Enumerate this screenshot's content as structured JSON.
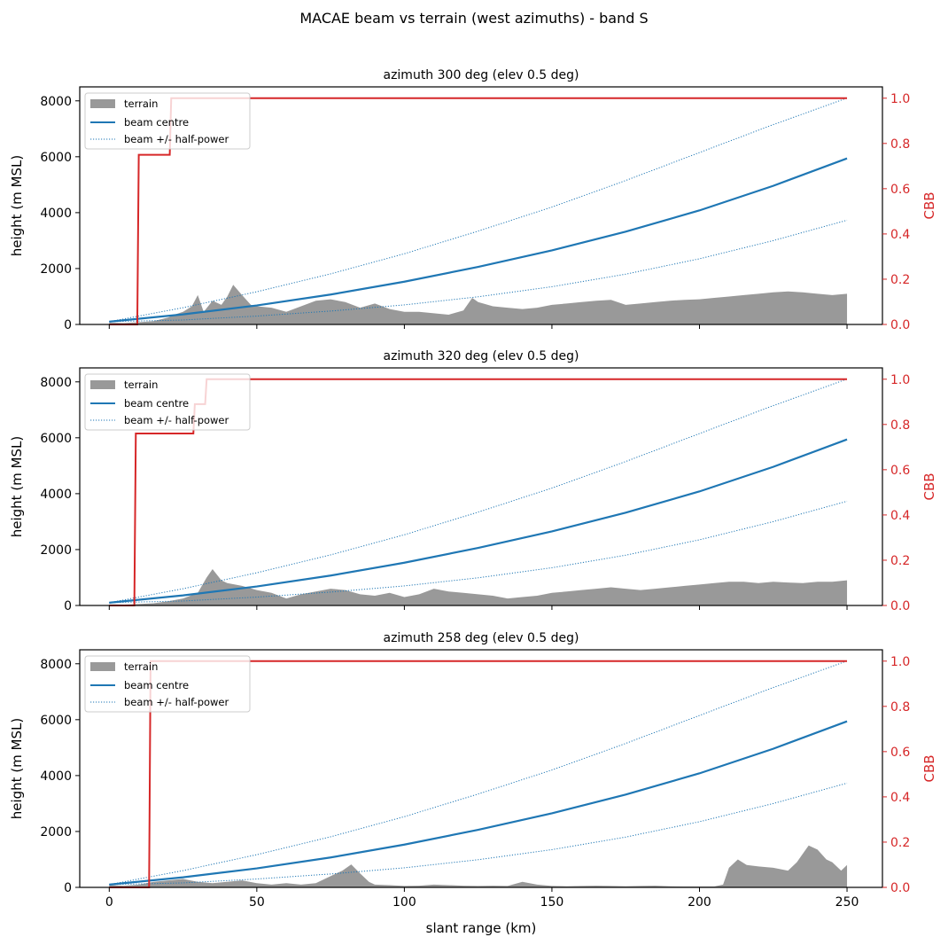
{
  "figure": {
    "title": "MACAE beam vs terrain (west azimuths)  -  band S"
  },
  "axes": {
    "xlabel": "slant range (km)",
    "ylabel_left": "height (m MSL)",
    "ylabel_right": "CBB",
    "xlim": [
      -10,
      262
    ],
    "ylim_left": [
      0,
      8500
    ],
    "ylim_right": [
      0,
      1.05
    ],
    "x_ticks": [
      0,
      50,
      100,
      150,
      200,
      250
    ],
    "y_ticks_left": [
      0,
      2000,
      4000,
      6000,
      8000
    ],
    "y_ticks_right": [
      0.0,
      0.2,
      0.4,
      0.6,
      0.8,
      1.0
    ],
    "legend_placement": "upper-left"
  },
  "legend": {
    "terrain": "terrain",
    "beam_centre": "beam centre",
    "beam_half_power": "beam +/- half-power"
  },
  "colors": {
    "terrain": "#999999",
    "beam": "#1f77b4",
    "cbb": "#d62728"
  },
  "chart_data": [
    {
      "type": "line",
      "title": "azimuth 300 deg  (elev 0.5 deg)",
      "beam_centre": {
        "x": [
          0,
          25,
          50,
          75,
          100,
          125,
          150,
          175,
          200,
          225,
          250
        ],
        "y": [
          100,
          360,
          680,
          1070,
          1530,
          2060,
          2650,
          3320,
          4080,
          4960,
          5940
        ]
      },
      "beam_upper": {
        "x": [
          0,
          25,
          50,
          75,
          100,
          125,
          150,
          175,
          200,
          225,
          250
        ],
        "y": [
          100,
          600,
          1170,
          1810,
          2530,
          3340,
          4200,
          5150,
          6150,
          7150,
          8100
        ]
      },
      "beam_lower": {
        "x": [
          0,
          25,
          50,
          75,
          100,
          125,
          150,
          175,
          200,
          225,
          250
        ],
        "y": [
          100,
          160,
          300,
          480,
          700,
          990,
          1350,
          1800,
          2350,
          3000,
          3730
        ]
      },
      "terrain": {
        "x": [
          0,
          5,
          10,
          15,
          20,
          22,
          25,
          28,
          30,
          32,
          35,
          38,
          40,
          42,
          45,
          48,
          50,
          55,
          60,
          65,
          70,
          75,
          80,
          85,
          90,
          95,
          100,
          105,
          110,
          115,
          120,
          123,
          125,
          130,
          135,
          140,
          145,
          150,
          155,
          160,
          165,
          170,
          175,
          180,
          185,
          190,
          195,
          200,
          205,
          210,
          215,
          220,
          225,
          230,
          235,
          240,
          245,
          250
        ],
        "y": [
          60,
          50,
          80,
          120,
          250,
          350,
          450,
          650,
          1050,
          450,
          850,
          700,
          1000,
          1420,
          1050,
          700,
          650,
          600,
          450,
          650,
          850,
          900,
          800,
          600,
          750,
          550,
          450,
          450,
          400,
          350,
          500,
          950,
          800,
          650,
          600,
          550,
          600,
          700,
          750,
          800,
          850,
          880,
          700,
          750,
          800,
          850,
          880,
          900,
          950,
          1000,
          1050,
          1100,
          1150,
          1180,
          1150,
          1100,
          1050,
          1100
        ]
      },
      "cbb": {
        "x": [
          0,
          9.5,
          10,
          20.5,
          21,
          250
        ],
        "y": [
          0,
          0,
          0.75,
          0.75,
          1.0,
          1.0
        ]
      }
    },
    {
      "type": "line",
      "title": "azimuth 320 deg  (elev 0.5 deg)",
      "beam_centre": {
        "x": [
          0,
          25,
          50,
          75,
          100,
          125,
          150,
          175,
          200,
          225,
          250
        ],
        "y": [
          100,
          360,
          680,
          1070,
          1530,
          2060,
          2650,
          3320,
          4080,
          4960,
          5940
        ]
      },
      "beam_upper": {
        "x": [
          0,
          25,
          50,
          75,
          100,
          125,
          150,
          175,
          200,
          225,
          250
        ],
        "y": [
          100,
          600,
          1170,
          1810,
          2530,
          3340,
          4200,
          5150,
          6150,
          7150,
          8100
        ]
      },
      "beam_lower": {
        "x": [
          0,
          25,
          50,
          75,
          100,
          125,
          150,
          175,
          200,
          225,
          250
        ],
        "y": [
          100,
          160,
          300,
          480,
          700,
          990,
          1350,
          1800,
          2350,
          3000,
          3730
        ]
      },
      "terrain": {
        "x": [
          0,
          5,
          10,
          15,
          20,
          25,
          30,
          33,
          35,
          38,
          40,
          45,
          50,
          55,
          60,
          65,
          70,
          75,
          80,
          85,
          90,
          95,
          100,
          105,
          110,
          115,
          120,
          125,
          130,
          135,
          140,
          145,
          150,
          155,
          160,
          165,
          170,
          175,
          180,
          185,
          190,
          195,
          200,
          205,
          210,
          215,
          220,
          225,
          230,
          235,
          240,
          245,
          250
        ],
        "y": [
          40,
          30,
          50,
          80,
          150,
          250,
          450,
          1000,
          1300,
          900,
          800,
          700,
          550,
          450,
          250,
          400,
          500,
          600,
          550,
          400,
          350,
          450,
          300,
          400,
          600,
          500,
          450,
          400,
          350,
          250,
          300,
          350,
          450,
          500,
          550,
          600,
          650,
          600,
          550,
          600,
          650,
          700,
          750,
          800,
          850,
          850,
          800,
          850,
          820,
          800,
          850,
          850,
          900
        ]
      },
      "cbb": {
        "x": [
          0,
          8.5,
          9,
          28.5,
          29,
          32.5,
          33,
          250
        ],
        "y": [
          0,
          0,
          0.76,
          0.76,
          0.89,
          0.89,
          1.0,
          1.0
        ]
      }
    },
    {
      "type": "line",
      "title": "azimuth 258 deg  (elev 0.5 deg)",
      "beam_centre": {
        "x": [
          0,
          25,
          50,
          75,
          100,
          125,
          150,
          175,
          200,
          225,
          250
        ],
        "y": [
          100,
          360,
          680,
          1070,
          1530,
          2060,
          2650,
          3320,
          4080,
          4960,
          5940
        ]
      },
      "beam_upper": {
        "x": [
          0,
          25,
          50,
          75,
          100,
          125,
          150,
          175,
          200,
          225,
          250
        ],
        "y": [
          100,
          600,
          1170,
          1810,
          2530,
          3340,
          4200,
          5150,
          6150,
          7150,
          8100
        ]
      },
      "beam_lower": {
        "x": [
          0,
          25,
          50,
          75,
          100,
          125,
          150,
          175,
          200,
          225,
          250
        ],
        "y": [
          100,
          160,
          300,
          480,
          700,
          990,
          1350,
          1800,
          2350,
          3000,
          3730
        ]
      },
      "terrain": {
        "x": [
          0,
          5,
          10,
          15,
          20,
          25,
          30,
          35,
          40,
          45,
          50,
          55,
          60,
          65,
          70,
          73,
          76,
          79,
          82,
          85,
          88,
          90,
          95,
          100,
          105,
          110,
          115,
          120,
          125,
          130,
          135,
          140,
          145,
          150,
          155,
          160,
          165,
          170,
          175,
          180,
          185,
          190,
          195,
          200,
          205,
          208,
          210,
          213,
          216,
          220,
          225,
          230,
          233,
          235,
          237,
          240,
          243,
          245,
          248,
          250
        ],
        "y": [
          80,
          60,
          100,
          200,
          250,
          300,
          200,
          150,
          200,
          250,
          150,
          100,
          150,
          100,
          150,
          300,
          450,
          600,
          820,
          500,
          200,
          100,
          80,
          50,
          60,
          100,
          80,
          60,
          50,
          60,
          50,
          200,
          100,
          50,
          40,
          50,
          60,
          50,
          40,
          50,
          60,
          40,
          30,
          30,
          30,
          100,
          700,
          1000,
          800,
          750,
          700,
          600,
          900,
          1200,
          1500,
          1350,
          1000,
          900,
          600,
          800
        ]
      },
      "cbb": {
        "x": [
          0,
          13.5,
          14,
          250
        ],
        "y": [
          0,
          0,
          1.0,
          1.0
        ]
      }
    }
  ]
}
